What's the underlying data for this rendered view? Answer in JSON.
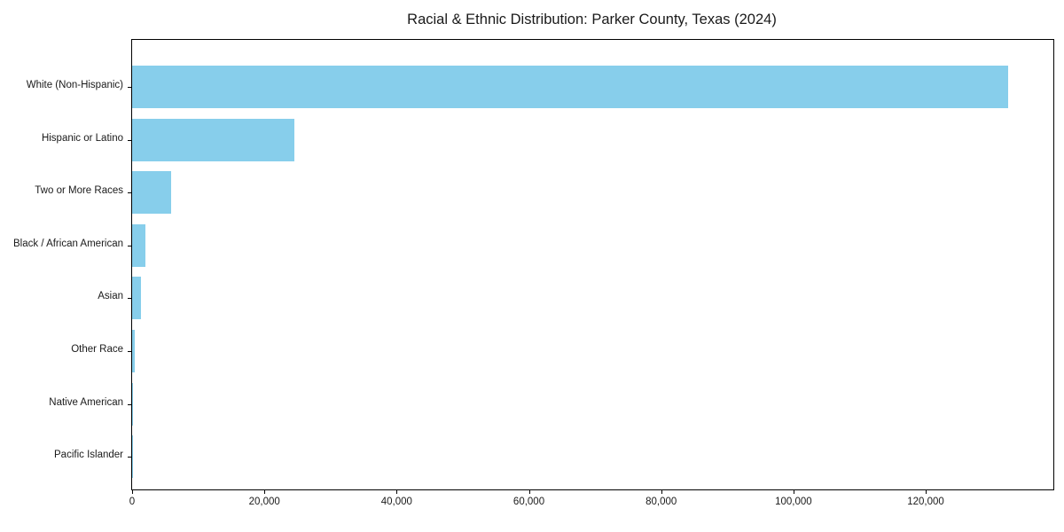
{
  "chart_data": {
    "type": "bar",
    "orientation": "horizontal",
    "title": "Racial & Ethnic Distribution: Parker County, Texas (2024)",
    "categories": [
      "White (Non-Hispanic)",
      "Hispanic or Latino",
      "Two or More Races",
      "Black / African American",
      "Asian",
      "Other Race",
      "Native American",
      "Pacific Islander"
    ],
    "values": [
      132400,
      24600,
      5900,
      2050,
      1400,
      400,
      150,
      50
    ],
    "xlabel": "",
    "ylabel": "",
    "xlim": [
      0,
      139300
    ],
    "x_ticks": [
      0,
      20000,
      40000,
      60000,
      80000,
      100000,
      120000
    ],
    "x_tick_labels": [
      "0",
      "20,000",
      "40,000",
      "60,000",
      "80,000",
      "100,000",
      "120,000"
    ],
    "bar_color": "#87CEEB",
    "grid": false,
    "legend": null,
    "plot_background": "#ffffff",
    "spine_color": "#000000"
  }
}
